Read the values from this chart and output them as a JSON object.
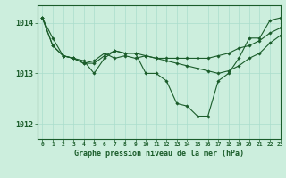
{
  "bg_color": "#cceedd",
  "grid_color": "#aaddcc",
  "line_color": "#1a5c2a",
  "marker_color": "#1a5c2a",
  "xlabel": "Graphe pression niveau de la mer (hPa)",
  "xlim": [
    -0.5,
    23
  ],
  "ylim": [
    1011.7,
    1014.35
  ],
  "yticks": [
    1012,
    1013,
    1014
  ],
  "xticks": [
    0,
    1,
    2,
    3,
    4,
    5,
    6,
    7,
    8,
    9,
    10,
    11,
    12,
    13,
    14,
    15,
    16,
    17,
    18,
    19,
    20,
    21,
    22,
    23
  ],
  "line1": [
    1014.1,
    1013.7,
    1013.35,
    1013.3,
    1013.25,
    1013.0,
    1013.3,
    1013.45,
    1013.4,
    1013.4,
    1013.0,
    1013.0,
    1012.85,
    1012.4,
    1012.35,
    1012.15,
    1012.15,
    1012.85,
    1013.0,
    1013.3,
    1013.7,
    1013.7,
    1014.05,
    1014.1
  ],
  "line2": [
    1014.1,
    1013.55,
    1013.35,
    1013.3,
    1013.2,
    1013.25,
    1013.4,
    1013.3,
    1013.35,
    1013.3,
    1013.35,
    1013.3,
    1013.3,
    1013.3,
    1013.3,
    1013.3,
    1013.3,
    1013.35,
    1013.4,
    1013.5,
    1013.55,
    1013.65,
    1013.8,
    1013.9
  ],
  "line3": [
    1014.1,
    1013.55,
    1013.35,
    1013.3,
    1013.2,
    1013.2,
    1013.35,
    1013.45,
    1013.4,
    1013.4,
    1013.35,
    1013.3,
    1013.25,
    1013.2,
    1013.15,
    1013.1,
    1013.05,
    1013.0,
    1013.05,
    1013.15,
    1013.3,
    1013.4,
    1013.6,
    1013.75
  ],
  "xlabel_fontsize": 6,
  "xtick_fontsize": 4.5,
  "ytick_fontsize": 6
}
